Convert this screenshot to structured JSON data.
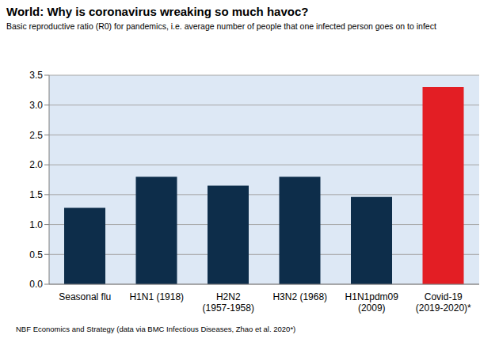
{
  "chart_data": {
    "type": "bar",
    "title": "World: Why is coronavirus wreaking so much havoc?",
    "subtitle": "Basic reproductive ratio (R0) for pandemics, i.e. average number of people that one infected person goes on to infect",
    "source": "NBF Economics and Strategy (data via BMC Infectious Diseases, Zhao et al. 2020*)",
    "categories": [
      "Seasonal flu",
      "H1N1 (1918)",
      "H2N2 (1957-1958)",
      "H3N2 (1968)",
      "H1N1pdm09 (2009)",
      "Covid-19 (2019-2020)*"
    ],
    "values": [
      1.28,
      1.8,
      1.65,
      1.8,
      1.46,
      3.3
    ],
    "colors": [
      "#0d2d4a",
      "#0d2d4a",
      "#0d2d4a",
      "#0d2d4a",
      "#0d2d4a",
      "#e31e24"
    ],
    "ylim": [
      0,
      3.5
    ],
    "yticks": [
      {
        "value": 0,
        "label": "0.0"
      },
      0.5,
      {
        "value": 1,
        "label": "1.0"
      },
      1.5,
      {
        "value": 2,
        "label": "2.0"
      },
      2.5,
      {
        "value": 3,
        "label": "3.0"
      },
      3.5
    ],
    "grid": true
  }
}
